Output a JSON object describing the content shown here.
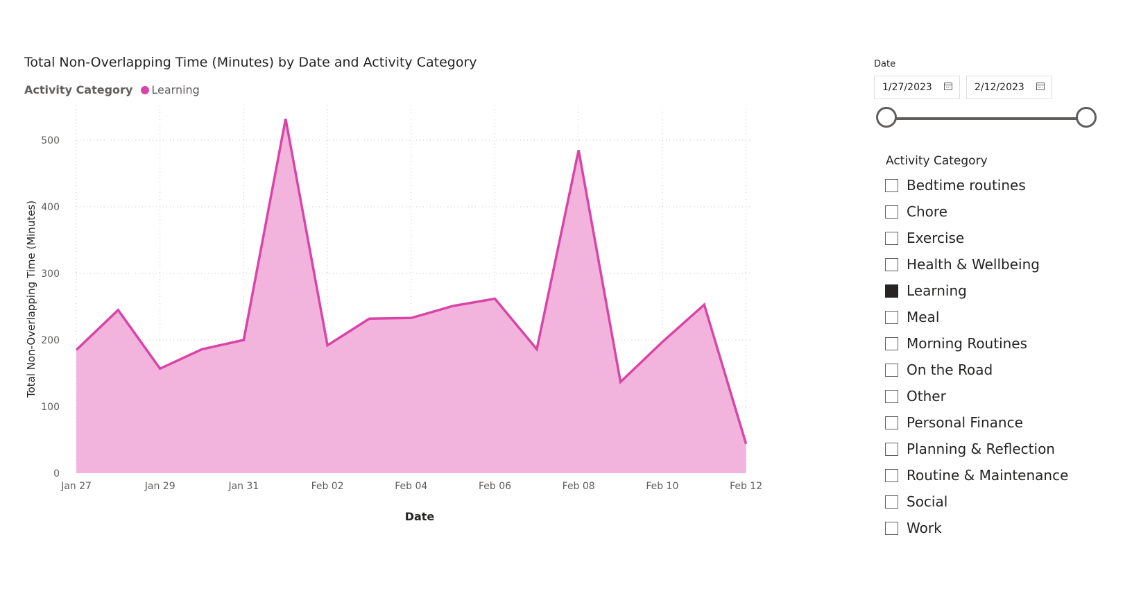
{
  "chart_data": {
    "type": "area",
    "title": "Total Non-Overlapping Time (Minutes) by Date and Activity Category",
    "legend": {
      "title": "Activity Category",
      "placement": "top-left",
      "entries": [
        "Learning"
      ]
    },
    "xlabel": "Date",
    "ylabel": "Total Non-Overlapping Time (Minutes)",
    "ylim": [
      0,
      550
    ],
    "yticks": [
      "0",
      "100",
      "200",
      "300",
      "400",
      "500"
    ],
    "xticks": [
      "Jan 27",
      "Jan 29",
      "Jan 31",
      "Feb 02",
      "Feb 04",
      "Feb 06",
      "Feb 08",
      "Feb 10",
      "Feb 12"
    ],
    "grid": true,
    "x": [
      "2023-01-27",
      "2023-01-28",
      "2023-01-29",
      "2023-01-30",
      "2023-01-31",
      "2023-02-01",
      "2023-02-02",
      "2023-02-03",
      "2023-02-04",
      "2023-02-05",
      "2023-02-06",
      "2023-02-07",
      "2023-02-08",
      "2023-02-09",
      "2023-02-10",
      "2023-02-11",
      "2023-02-12"
    ],
    "series": [
      {
        "name": "Learning",
        "color": "#d945a7",
        "fill": "#f2b4dc",
        "values": [
          185,
          245,
          157,
          186,
          200,
          532,
          192,
          232,
          233,
          251,
          262,
          186,
          485,
          137,
          197,
          253,
          44
        ]
      }
    ]
  },
  "slicer": {
    "date_label": "Date",
    "start_date": "1/27/2023",
    "end_date": "2/12/2023",
    "category_header": "Activity Category",
    "categories": [
      {
        "label": "Bedtime routines",
        "checked": false
      },
      {
        "label": "Chore",
        "checked": false
      },
      {
        "label": "Exercise",
        "checked": false
      },
      {
        "label": "Health & Wellbeing",
        "checked": false
      },
      {
        "label": "Learning",
        "checked": true
      },
      {
        "label": "Meal",
        "checked": false
      },
      {
        "label": "Morning Routines",
        "checked": false
      },
      {
        "label": "On the Road",
        "checked": false
      },
      {
        "label": "Other",
        "checked": false
      },
      {
        "label": "Personal Finance",
        "checked": false
      },
      {
        "label": "Planning & Reflection",
        "checked": false
      },
      {
        "label": "Routine & Maintenance",
        "checked": false
      },
      {
        "label": "Social",
        "checked": false
      },
      {
        "label": "Work",
        "checked": false
      }
    ]
  }
}
